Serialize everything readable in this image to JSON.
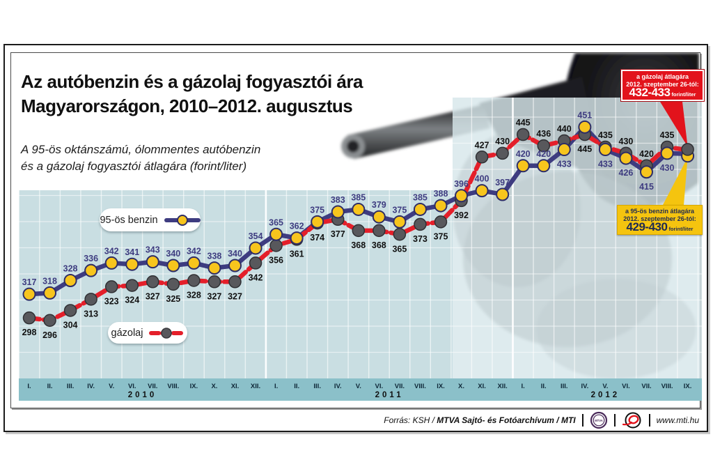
{
  "title": {
    "line1": "Az autóbenzin és a gázolaj fogyasztói ára",
    "line2": "Magyarországon, 2010–2012. augusztus"
  },
  "subtitle": {
    "line1": "A 95-ös oktánszámú, ólommentes autóbenzin",
    "line2": "és a gázolaj fogyasztói átlagára (forint/liter)"
  },
  "legend": {
    "benzin_label": "95-ös benzin",
    "gazolaj_label": "gázolaj"
  },
  "callouts": {
    "diesel": {
      "line1": "a gázolaj átlagára",
      "line2": "2012. szeptember 26-tól:",
      "value": "432-433",
      "unit": "forint/liter"
    },
    "benzin": {
      "line1": "a 95-ös benzin átlagára",
      "line2": "2012. szeptember 26-tól:",
      "value": "429-430",
      "unit": "forint/liter"
    }
  },
  "footer": {
    "source_prefix": "Forrás: KSH /",
    "source_bold": "MTVA Sajtó- és Fotóarchívum / MTI",
    "mtva_logo_text": "MTVA",
    "website": "www.mti.hu"
  },
  "colors": {
    "benzin_line": "#3e3c80",
    "benzin_marker": "#f7c51d",
    "benzin_marker_stroke": "#2e2d66",
    "diesel_line": "#e41f2a",
    "diesel_marker": "#58585c",
    "diesel_marker_stroke": "#303034",
    "plot_left": "#c9dee2",
    "plot_right_panel": "#d7e7ea",
    "axis_band": "#8bc0c9",
    "callout_red": "#e2131c",
    "callout_yellow": "#f5c40f",
    "benzin_label_color": "#3e3c80",
    "diesel_label_color": "#101010"
  },
  "chart_data": {
    "type": "line",
    "title": "Az autóbenzin és a gázolaj fogyasztói ára Magyarországon, 2010–2012. augusztus",
    "ylabel": "forint/liter",
    "ylim": [
      250,
      475
    ],
    "grid": true,
    "legend_position": "inside-left",
    "x_months": [
      "I.",
      "II.",
      "III.",
      "IV.",
      "V.",
      "VI.",
      "VII.",
      "VIII.",
      "IX.",
      "X.",
      "XI.",
      "XII.",
      "I.",
      "II.",
      "III.",
      "IV.",
      "V.",
      "VI.",
      "VII.",
      "VIII.",
      "IX.",
      "X.",
      "XI.",
      "XII.",
      "I.",
      "II.",
      "III.",
      "IV.",
      "V.",
      "VI.",
      "VII.",
      "VIII.",
      "IX."
    ],
    "year_bands": [
      {
        "label": "2010",
        "start": 0,
        "end": 11
      },
      {
        "label": "2011",
        "start": 12,
        "end": 23
      },
      {
        "label": "2012",
        "start": 24,
        "end": 32
      }
    ],
    "series": [
      {
        "name": "95-ös benzin",
        "values": [
          317,
          318,
          328,
          336,
          342,
          341,
          343,
          340,
          342,
          338,
          340,
          354,
          365,
          362,
          375,
          383,
          385,
          379,
          375,
          385,
          388,
          396,
          400,
          397,
          420,
          420,
          433,
          451,
          433,
          426,
          415,
          430
        ],
        "final_unlabeled_value": 429.5,
        "final_note": "429-430 forint/liter (2012. szeptember 26-tól)"
      },
      {
        "name": "gázolaj",
        "values": [
          298,
          296,
          304,
          313,
          323,
          324,
          327,
          325,
          328,
          327,
          327,
          342,
          356,
          361,
          374,
          377,
          368,
          368,
          365,
          373,
          375,
          392,
          427,
          430,
          445,
          436,
          440,
          445,
          435,
          430,
          420,
          435
        ],
        "final_unlabeled_value": 432.5,
        "final_note": "432-433 forint/liter (2012. szeptember 26-tól)"
      }
    ]
  }
}
